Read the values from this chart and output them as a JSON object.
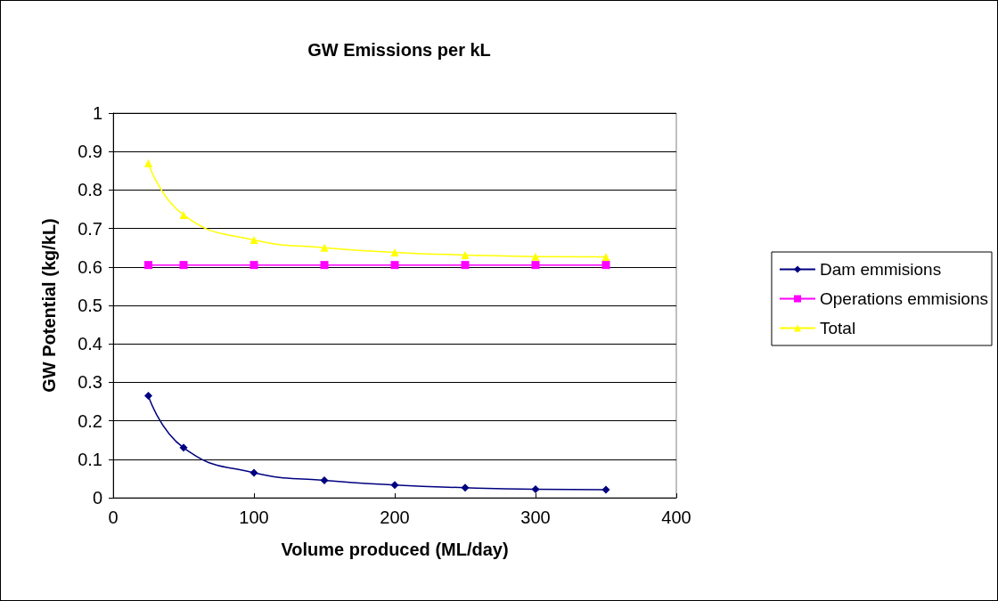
{
  "chart_data": {
    "type": "line",
    "title": "GW Emissions per kL",
    "xlabel": "Volume produced (ML/day)",
    "ylabel": "GW Potential (kg/kL)",
    "x": [
      25,
      50,
      100,
      150,
      200,
      250,
      300,
      350
    ],
    "series": [
      {
        "name": "Dam emmisions",
        "color": "#000080",
        "marker": "diamond",
        "values": [
          0.265,
          0.13,
          0.065,
          0.045,
          0.033,
          0.026,
          0.022,
          0.021
        ]
      },
      {
        "name": "Operations emmisions",
        "color": "#ff00ff",
        "marker": "square",
        "values": [
          0.605,
          0.605,
          0.605,
          0.605,
          0.605,
          0.605,
          0.605,
          0.605
        ]
      },
      {
        "name": "Total",
        "color": "#ffff00",
        "marker": "triangle",
        "values": [
          0.87,
          0.735,
          0.67,
          0.65,
          0.638,
          0.631,
          0.627,
          0.626
        ]
      }
    ],
    "xlim": [
      0,
      400
    ],
    "xticks": [
      0,
      100,
      200,
      300,
      400
    ],
    "ylim": [
      0,
      1
    ],
    "yticks": [
      0,
      0.1,
      0.2,
      0.3,
      0.4,
      0.5,
      0.6,
      0.7,
      0.8,
      0.9,
      1
    ],
    "grid": "y",
    "legend": "right"
  }
}
